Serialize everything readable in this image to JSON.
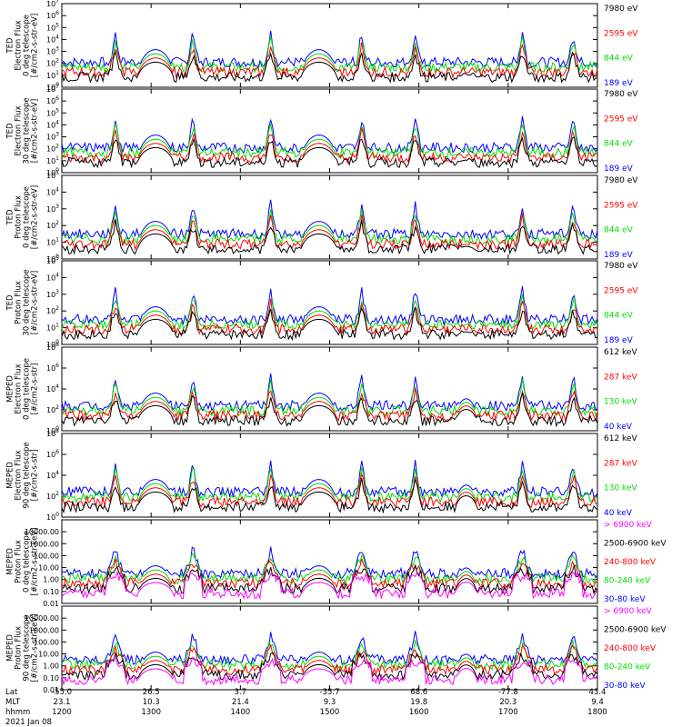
{
  "chart_data": [
    {
      "type": "line",
      "ylabel_lines": [
        "TED",
        "Electron Flux",
        "0 deg telescope",
        "[#/cm2-s-str-eV]"
      ],
      "yscale": "log",
      "ylim": [
        1,
        10000000
      ],
      "ytick_exp": [
        0,
        1,
        2,
        3,
        4,
        5,
        6,
        7
      ],
      "legend": [
        {
          "text": "7980 eV",
          "color": "#000000"
        },
        {
          "text": "2595 eV",
          "color": "#ff0000"
        },
        {
          "text": "844 eV",
          "color": "#00dd00"
        },
        {
          "text": "189 eV",
          "color": "#0000ff"
        }
      ]
    },
    {
      "type": "line",
      "ylabel_lines": [
        "TED",
        "Electron Flux",
        "30 deg telescope",
        "[#/cm2-s-str-eV]"
      ],
      "yscale": "log",
      "ylim": [
        1,
        10000000
      ],
      "ytick_exp": [
        0,
        1,
        2,
        3,
        4,
        5,
        6,
        7
      ],
      "legend": [
        {
          "text": "7980 eV",
          "color": "#000000"
        },
        {
          "text": "2595 eV",
          "color": "#ff0000"
        },
        {
          "text": "844 eV",
          "color": "#00dd00"
        },
        {
          "text": "189 eV",
          "color": "#0000ff"
        }
      ]
    },
    {
      "type": "line",
      "ylabel_lines": [
        "TED",
        "Proton Flux",
        "0 deg telescope",
        "[#/cm2-s-str-eV]"
      ],
      "yscale": "log",
      "ylim": [
        1,
        100000
      ],
      "ytick_exp": [
        0,
        1,
        2,
        3,
        4,
        5
      ],
      "legend": [
        {
          "text": "7980 eV",
          "color": "#000000"
        },
        {
          "text": "2595 eV",
          "color": "#ff0000"
        },
        {
          "text": "844 eV",
          "color": "#00dd00"
        },
        {
          "text": "189 eV",
          "color": "#0000ff"
        }
      ]
    },
    {
      "type": "line",
      "ylabel_lines": [
        "TED",
        "Proton Flux",
        "30 deg telescope",
        "[#/cm2-s-str-eV]"
      ],
      "yscale": "log",
      "ylim": [
        1,
        100000
      ],
      "ytick_exp": [
        0,
        1,
        2,
        3,
        4,
        5
      ],
      "legend": [
        {
          "text": "7980 eV",
          "color": "#000000"
        },
        {
          "text": "2595 eV",
          "color": "#ff0000"
        },
        {
          "text": "844 eV",
          "color": "#00dd00"
        },
        {
          "text": "189 eV",
          "color": "#0000ff"
        }
      ]
    },
    {
      "type": "line",
      "ylabel_lines": [
        "MEPED",
        "Electron Flux",
        "0 deg telescope",
        "[#/cm2-s-str]"
      ],
      "yscale": "log",
      "ylim": [
        1,
        100000000
      ],
      "ytick_exp": [
        0,
        2,
        4,
        6,
        8
      ],
      "legend": [
        {
          "text": "612 keV",
          "color": "#000000"
        },
        {
          "text": "287 keV",
          "color": "#ff0000"
        },
        {
          "text": "130 keV",
          "color": "#00dd00"
        },
        {
          "text": "40 keV",
          "color": "#0000ff"
        }
      ]
    },
    {
      "type": "line",
      "ylabel_lines": [
        "MEPED",
        "Electron Flux",
        "90 deg telescope",
        "[#/cm2-s-str]"
      ],
      "yscale": "log",
      "ylim": [
        1,
        100000000
      ],
      "ytick_exp": [
        0,
        2,
        4,
        6,
        8
      ],
      "legend": [
        {
          "text": "612 keV",
          "color": "#000000"
        },
        {
          "text": "287 keV",
          "color": "#ff0000"
        },
        {
          "text": "130 keV",
          "color": "#00dd00"
        },
        {
          "text": "40 keV",
          "color": "#0000ff"
        }
      ]
    },
    {
      "type": "line",
      "ylabel_lines": [
        "MEPED",
        "Proton Flux",
        "0 deg telescope",
        "[#/cm2-s-str-keV]"
      ],
      "yscale": "log",
      "ylim": [
        0.01,
        100000
      ],
      "ytick_labels": [
        "0.01",
        "0.10",
        "1.00",
        "10.00",
        "100.00",
        "1000.00",
        "10000.00"
      ],
      "legend": [
        {
          "text": "> 6900 keV",
          "color": "#ff00ff"
        },
        {
          "text": "2500-6900 keV",
          "color": "#000000"
        },
        {
          "text": "240-800 keV",
          "color": "#ff0000"
        },
        {
          "text": "80-240 keV",
          "color": "#00dd00"
        },
        {
          "text": "30-80 keV",
          "color": "#0000ff"
        }
      ]
    },
    {
      "type": "line",
      "ylabel_lines": [
        "MEPED",
        "Proton Flux",
        "90 deg telescope",
        "[#/cm2-s-str-keV]"
      ],
      "yscale": "log",
      "ylim": [
        0.01,
        100000
      ],
      "ytick_labels": [
        "0.01",
        "0.10",
        "1.00",
        "10.00",
        "100.00",
        "1000.00",
        "10000.00"
      ],
      "legend": [
        {
          "text": "> 6900 keV",
          "color": "#ff00ff"
        },
        {
          "text": "2500-6900 keV",
          "color": "#000000"
        },
        {
          "text": "240-800 keV",
          "color": "#ff0000"
        },
        {
          "text": "80-240 keV",
          "color": "#00dd00"
        },
        {
          "text": "30-80 keV",
          "color": "#0000ff"
        }
      ]
    }
  ],
  "x_axis": {
    "row_labels": [
      "Lat",
      "MLT",
      "hhmm"
    ],
    "columns": [
      {
        "lat": "-55.0",
        "mlt": "23.1",
        "hhmm": "1200"
      },
      {
        "lat": "26.5",
        "mlt": "10.3",
        "hhmm": "1300"
      },
      {
        "lat": "3.7",
        "mlt": "21.4",
        "hhmm": "1400"
      },
      {
        "lat": "-35.7",
        "mlt": "9.3",
        "hhmm": "1500"
      },
      {
        "lat": "68.6",
        "mlt": "19.8",
        "hhmm": "1600"
      },
      {
        "lat": "-77.8",
        "mlt": "20.3",
        "hhmm": "1700"
      },
      {
        "lat": "43.4",
        "mlt": "9.4",
        "hhmm": "1800"
      }
    ],
    "date": "2021 Jan 08"
  }
}
